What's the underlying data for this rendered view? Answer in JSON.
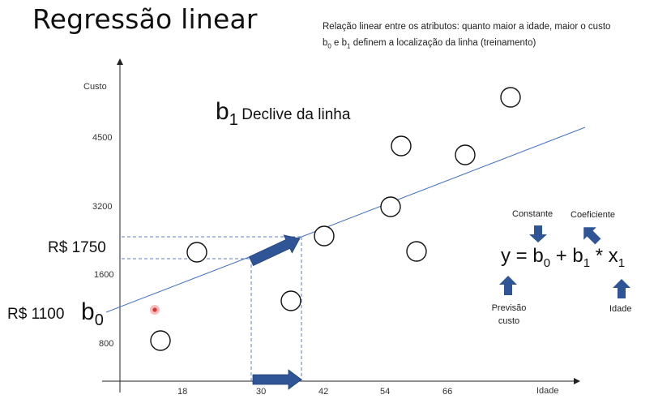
{
  "title": "Regressão linear",
  "notes": {
    "line1": "Relação linear entre os atributos: quanto maior a idade, maior o custo",
    "line2_pre": "b",
    "line2_sub0": "0",
    "line2_mid": " e b",
    "line2_sub1": "1",
    "line2_post": " definem a localização da linha (treinamento)"
  },
  "axes": {
    "y_label": "Custo",
    "x_label": "Idade",
    "y_ticks": [
      "4500",
      "3200",
      "1600",
      "800"
    ],
    "x_ticks": [
      "18",
      "30",
      "42",
      "54",
      "66"
    ]
  },
  "labels": {
    "price_1750": "R$ 1750",
    "price_1100": "R$ 1100",
    "b0_base": "b",
    "b0_sub": "0",
    "b1_base": "b",
    "b1_sub": "1",
    "b1_caption": "Declive da linha"
  },
  "equation": {
    "y": "y = b",
    "sub0": "0",
    "plus": " + b",
    "sub1": "1",
    "times": " * x",
    "subx": "1"
  },
  "callouts": {
    "constante": "Constante",
    "coeficiente": "Coeficiente",
    "previsao": "Previsão custo",
    "idade": "Idade"
  },
  "colors": {
    "axis": "#222222",
    "regression_line": "#4472c4",
    "arrow_fill": "#2f5597",
    "arrow_stroke": "#1f3f7a",
    "guide_dash": "#5b7fc0",
    "cursor_dot": "#e03030"
  }
}
